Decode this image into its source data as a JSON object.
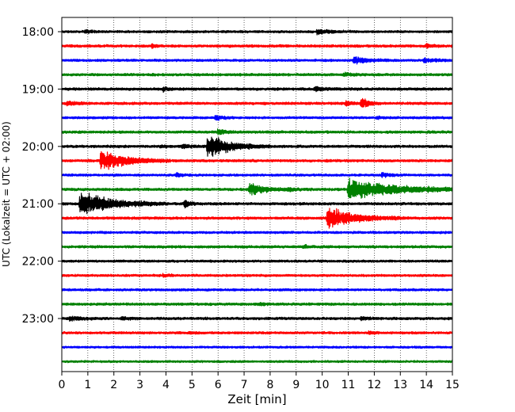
{
  "chart_data": {
    "type": "line",
    "title": "",
    "xlabel": "Zeit  [min]",
    "ylabel": "UTC (Lokalzeit = UTC + 02:00)",
    "xlim": [
      0,
      15
    ],
    "x_ticks": [
      0,
      1,
      2,
      3,
      4,
      5,
      6,
      7,
      8,
      9,
      10,
      11,
      12,
      13,
      14,
      15
    ],
    "row_colors": [
      "#000000",
      "#ff0000",
      "#0000ff",
      "#008000"
    ],
    "rows_per_hour": 4,
    "grid": "vertical dotted",
    "y_tick_labels": [
      {
        "row": 0,
        "label": "18:00"
      },
      {
        "row": 4,
        "label": "19:00"
      },
      {
        "row": 8,
        "label": "20:00"
      },
      {
        "row": 12,
        "label": "21:00"
      },
      {
        "row": 16,
        "label": "22:00"
      },
      {
        "row": 20,
        "label": "23:00"
      }
    ],
    "traces": [
      {
        "start": "18:00",
        "noise": 0.22,
        "events": [
          {
            "t": 0.9,
            "amp": 0.35,
            "dur": 0.3
          },
          {
            "t": 9.8,
            "amp": 0.55,
            "dur": 0.5
          }
        ]
      },
      {
        "start": "18:15",
        "noise": 0.24,
        "events": [
          {
            "t": 3.45,
            "amp": 0.6,
            "dur": 0.15
          },
          {
            "t": 14.0,
            "amp": 0.35,
            "dur": 0.2
          }
        ]
      },
      {
        "start": "18:30",
        "noise": 0.22,
        "events": [
          {
            "t": 11.2,
            "amp": 0.9,
            "dur": 0.5
          },
          {
            "t": 13.9,
            "amp": 0.5,
            "dur": 0.4
          }
        ]
      },
      {
        "start": "18:45",
        "noise": 0.24,
        "events": [
          {
            "t": 10.8,
            "amp": 0.4,
            "dur": 0.3
          }
        ]
      },
      {
        "start": "19:00",
        "noise": 0.24,
        "events": [
          {
            "t": 3.9,
            "amp": 0.55,
            "dur": 0.15
          },
          {
            "t": 9.7,
            "amp": 0.55,
            "dur": 0.4
          }
        ]
      },
      {
        "start": "19:15",
        "noise": 0.24,
        "events": [
          {
            "t": 0.2,
            "amp": 0.5,
            "dur": 0.3
          },
          {
            "t": 11.5,
            "amp": 1.6,
            "dur": 0.25
          },
          {
            "t": 10.9,
            "amp": 0.6,
            "dur": 0.2
          }
        ]
      },
      {
        "start": "19:30",
        "noise": 0.22,
        "events": [
          {
            "t": 5.9,
            "amp": 0.7,
            "dur": 0.25
          },
          {
            "t": 12.1,
            "amp": 0.3,
            "dur": 0.2
          }
        ]
      },
      {
        "start": "19:45",
        "noise": 0.24,
        "events": [
          {
            "t": 6.0,
            "amp": 0.9,
            "dur": 0.2
          }
        ]
      },
      {
        "start": "20:00",
        "noise": 0.24,
        "events": [
          {
            "t": 5.6,
            "amp": 2.8,
            "dur": 0.8
          },
          {
            "t": 4.6,
            "amp": 0.5,
            "dur": 0.3
          },
          {
            "t": 3.8,
            "amp": 0.3,
            "dur": 0.2
          }
        ]
      },
      {
        "start": "20:15",
        "noise": 0.24,
        "events": [
          {
            "t": 1.5,
            "amp": 2.6,
            "dur": 0.9
          }
        ]
      },
      {
        "start": "20:30",
        "noise": 0.22,
        "events": [
          {
            "t": 4.4,
            "amp": 0.5,
            "dur": 0.2
          },
          {
            "t": 12.3,
            "amp": 0.5,
            "dur": 0.3
          }
        ]
      },
      {
        "start": "20:45",
        "noise": 0.24,
        "events": [
          {
            "t": 7.2,
            "amp": 1.6,
            "dur": 0.5
          },
          {
            "t": 8.7,
            "amp": 0.4,
            "dur": 0.3
          },
          {
            "t": 11.0,
            "amp": 2.4,
            "dur": 1.8
          }
        ]
      },
      {
        "start": "21:00",
        "noise": 0.24,
        "events": [
          {
            "t": 0.7,
            "amp": 3.0,
            "dur": 1.1
          },
          {
            "t": 4.7,
            "amp": 0.9,
            "dur": 0.2
          }
        ]
      },
      {
        "start": "21:15",
        "noise": 0.24,
        "events": [
          {
            "t": 10.2,
            "amp": 2.6,
            "dur": 1.0
          }
        ]
      },
      {
        "start": "21:30",
        "noise": 0.22,
        "events": []
      },
      {
        "start": "21:45",
        "noise": 0.24,
        "events": [
          {
            "t": 9.3,
            "amp": 0.4,
            "dur": 0.15
          }
        ]
      },
      {
        "start": "22:00",
        "noise": 0.22,
        "events": []
      },
      {
        "start": "22:15",
        "noise": 0.22,
        "events": [
          {
            "t": 3.9,
            "amp": 0.35,
            "dur": 0.2
          }
        ]
      },
      {
        "start": "22:30",
        "noise": 0.22,
        "events": []
      },
      {
        "start": "22:45",
        "noise": 0.24,
        "events": [
          {
            "t": 7.6,
            "amp": 0.35,
            "dur": 0.2
          }
        ]
      },
      {
        "start": "23:00",
        "noise": 0.24,
        "events": [
          {
            "t": 0.3,
            "amp": 0.5,
            "dur": 0.4
          },
          {
            "t": 2.3,
            "amp": 0.3,
            "dur": 0.3
          },
          {
            "t": 11.5,
            "amp": 0.35,
            "dur": 0.3
          }
        ]
      },
      {
        "start": "23:15",
        "noise": 0.22,
        "events": [
          {
            "t": 4.9,
            "amp": 0.35,
            "dur": 0.15
          },
          {
            "t": 11.8,
            "amp": 0.3,
            "dur": 0.2
          }
        ]
      },
      {
        "start": "23:30",
        "noise": 0.2,
        "events": []
      },
      {
        "start": "23:45",
        "noise": 0.2,
        "events": []
      }
    ]
  }
}
